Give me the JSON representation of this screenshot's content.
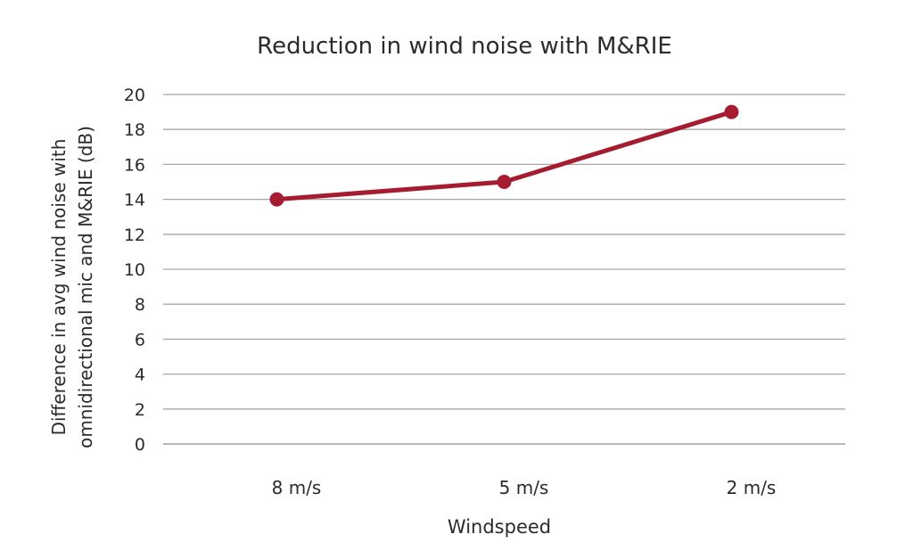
{
  "chart_data": {
    "type": "line",
    "title": "Reduction in wind noise with M&RIE",
    "xlabel": "Windspeed",
    "ylabel_lines": [
      "Difference in avg wind noise with",
      "omnidirectional mic and M&RIE (dB)"
    ],
    "categories": [
      "8 m/s",
      "5 m/s",
      "2 m/s"
    ],
    "series": [
      {
        "values": [
          14,
          15,
          19
        ],
        "color": "#a51c30"
      }
    ],
    "ylim": [
      0,
      20
    ],
    "yticks": [
      0,
      2,
      4,
      6,
      8,
      10,
      12,
      14,
      16,
      18,
      20
    ],
    "grid": true
  }
}
